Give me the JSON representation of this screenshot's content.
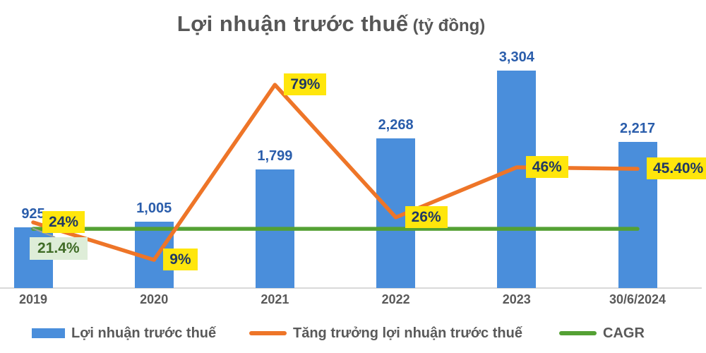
{
  "title": {
    "main": "Lợi nhuận trước thuế",
    "unit": "(tỷ đồng)"
  },
  "colors": {
    "bar": "#4A8EDB",
    "growth_line": "#EE7528",
    "cagr_line": "#54A134",
    "pct_label_bg": "#FFE60C",
    "pct_label_text": "#1F3864",
    "cagr_label_bg": "#DEEDD8",
    "cagr_label_text": "#3F6B26",
    "value_label_text": "#2A5DAB",
    "axis_text": "#595959",
    "axis_line": "#D9D9D9",
    "leader_line": "#9E9E9E"
  },
  "chart_data": {
    "type": "combo",
    "title": "Lợi nhuận trước thuế (tỷ đồng)",
    "categories": [
      "2019",
      "2020",
      "2021",
      "2022",
      "2023",
      "30/6/2024"
    ],
    "series": [
      {
        "name": "Lợi nhuận trước thuế",
        "type": "bar",
        "values": [
          925,
          1005,
          1799,
          2268,
          3304,
          2217
        ],
        "labels": [
          "925",
          "1,005",
          "1,799",
          "2,268",
          "3,304",
          "2,217"
        ]
      },
      {
        "name": "Tăng trưởng lợi nhuận trước thuế",
        "type": "line",
        "values": [
          24,
          9,
          79,
          26,
          46,
          45.4
        ],
        "labels": [
          "24%",
          "9%",
          "79%",
          "26%",
          "46%",
          "45.40%"
        ]
      },
      {
        "name": "CAGR",
        "type": "constant-line",
        "value": 21.4,
        "label": "21.4%"
      }
    ],
    "xlabel": "",
    "ylabel": "",
    "value_axis_visible": false,
    "percent_axis_visible": false,
    "grid": false,
    "legend_position": "bottom"
  },
  "legend": {
    "items": [
      {
        "label": "Lợi nhuận trước thuế"
      },
      {
        "label": "Tăng trưởng lợi nhuận trước thuế"
      },
      {
        "label": "CAGR"
      }
    ]
  }
}
